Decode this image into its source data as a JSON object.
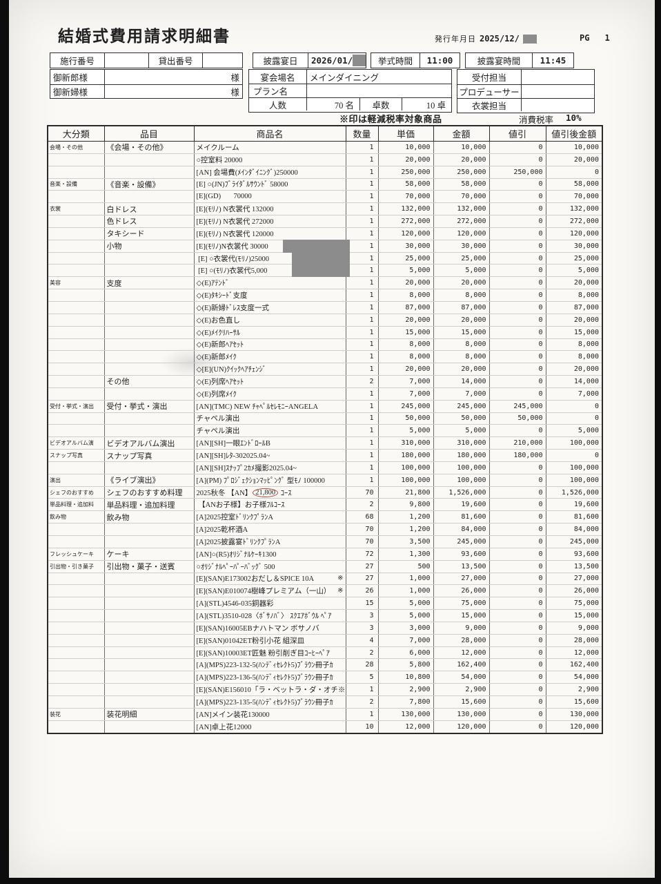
{
  "page": {
    "title": "結婚式費用請求明細書",
    "issue_date_label": "発行年月日",
    "issue_date_value": "2025/12/",
    "pg_label": "PG",
    "pg_value": "1"
  },
  "header": {
    "seko_label": "施行番号",
    "seko_value": "",
    "kashidashi_label": "貸出番号",
    "kashidashi_value": "",
    "groom_label": "御新郎様",
    "groom_value": "",
    "bride_label": "御新婦様",
    "bride_value": "",
    "sama": "様",
    "reception_date_label": "披露宴日",
    "reception_date_value": "2026/01/",
    "ceremony_time_label": "挙式時間",
    "ceremony_time_value": "11:00",
    "reception_time_label": "披露宴時間",
    "reception_time_value": "11:45",
    "venue_label": "宴会場名",
    "venue_value": "メインダイニング",
    "plan_label": "プラン名",
    "plan_value": "",
    "guests_label": "人数",
    "guests_value": "70 名",
    "tables_label": "卓数",
    "tables_value": "10 卓",
    "reception_staff_label": "受付担当",
    "reception_staff_value": "",
    "producer_label": "プロデューサー",
    "producer_value": "",
    "costume_staff_label": "衣裳担当",
    "costume_staff_value": "",
    "tax_note": "※印は軽減税率対象商品",
    "tax_rate_label": "消費税率",
    "tax_rate_value": "10%"
  },
  "table": {
    "columns": [
      "大分類",
      "品目",
      "商品名",
      "数量",
      "単価",
      "金額",
      "値引",
      "値引後金額"
    ],
    "rows": [
      {
        "c": "会場・その他",
        "i": "《会場・その他》",
        "p": "メイクルーム",
        "q": "1",
        "u": "10,000",
        "a": "10,000",
        "d": "0",
        "n": "10,000"
      },
      {
        "p": "○控室料 20000",
        "q": "1",
        "u": "20,000",
        "a": "20,000",
        "d": "0",
        "n": "20,000"
      },
      {
        "p": "[AN] 会場費(ﾒｲﾝﾀﾞｲﾆﾝｸﾞ)250000",
        "q": "1",
        "u": "250,000",
        "a": "250,000",
        "d": "250,000",
        "n": "0"
      },
      {
        "c": "音楽・設備",
        "i": "《音楽・設備》",
        "p": "[E] ○(JN)ﾌﾞﾗｲﾀﾞﾙｻｳﾝﾄﾞ 58000",
        "q": "1",
        "u": "58,000",
        "a": "58,000",
        "d": "0",
        "n": "58,000"
      },
      {
        "p": "[E](GD)       70000",
        "q": "1",
        "u": "70,000",
        "a": "70,000",
        "d": "0",
        "n": "70,000"
      },
      {
        "c": "衣裳",
        "i": "白ドレス",
        "p": "[E](ﾓﾘﾉ) N衣裳代 132000",
        "q": "1",
        "u": "132,000",
        "a": "132,000",
        "d": "0",
        "n": "132,000"
      },
      {
        "i": "色ドレス",
        "p": "[E](ﾓﾘﾉ) N衣裳代 272000",
        "q": "1",
        "u": "272,000",
        "a": "272,000",
        "d": "0",
        "n": "272,000"
      },
      {
        "i": "タキシード",
        "p": "[E](ﾓﾘﾉ) N衣裳代 120000",
        "q": "1",
        "u": "120,000",
        "a": "120,000",
        "d": "0",
        "n": "120,000"
      },
      {
        "i": "小物",
        "p": "[E](ﾓﾘﾉ)N衣裳代 30000",
        "redact": "wide",
        "q": "1",
        "u": "30,000",
        "a": "30,000",
        "d": "0",
        "n": "30,000"
      },
      {
        "p": " [E] ○衣裳代(ﾓﾘﾉ)25000",
        "redact": "narrow",
        "q": "1",
        "u": "25,000",
        "a": "25,000",
        "d": "0",
        "n": "25,000"
      },
      {
        "p": " [E] ○(ﾓﾘﾉ)衣裳代5,000",
        "redact": "narrow",
        "q": "1",
        "u": "5,000",
        "a": "5,000",
        "d": "0",
        "n": "5,000"
      },
      {
        "c": "美容",
        "i": "支度",
        "p": "◇(E)ｱﾃﾝﾄﾞ",
        "q": "1",
        "u": "20,000",
        "a": "20,000",
        "d": "0",
        "n": "20,000"
      },
      {
        "p": "◇(E)ﾀｷｼｰﾄﾞ支度",
        "q": "1",
        "u": "8,000",
        "a": "8,000",
        "d": "0",
        "n": "8,000"
      },
      {
        "p": "◇(E)新婦ﾄﾞﾚｽ支度一式",
        "q": "1",
        "u": "87,000",
        "a": "87,000",
        "d": "0",
        "n": "87,000"
      },
      {
        "p": "◇(E)お色直し",
        "q": "1",
        "u": "20,000",
        "a": "20,000",
        "d": "0",
        "n": "20,000"
      },
      {
        "p": "◇(E)ﾒｲｸﾘﾊｰｻﾙ",
        "q": "1",
        "u": "15,000",
        "a": "15,000",
        "d": "0",
        "n": "15,000"
      },
      {
        "p": "◇(E)新郎ﾍｱｾｯﾄ",
        "q": "1",
        "u": "8,000",
        "a": "8,000",
        "d": "0",
        "n": "8,000"
      },
      {
        "p": "◇(E)新郎ﾒｲｸ",
        "q": "1",
        "u": "8,000",
        "a": "8,000",
        "d": "0",
        "n": "8,000"
      },
      {
        "p": "◇[E](UN)ｸｲｯｸﾍｱﾁｪﾝｼﾞ",
        "q": "1",
        "u": "20,000",
        "a": "20,000",
        "d": "0",
        "n": "20,000"
      },
      {
        "i": "その他",
        "p": "◇(E)列席ﾍｱｾｯﾄ",
        "q": "2",
        "u": "7,000",
        "a": "14,000",
        "d": "0",
        "n": "14,000"
      },
      {
        "p": "◇(E)列席ﾒｲｸ",
        "q": "1",
        "u": "7,000",
        "a": "7,000",
        "d": "0",
        "n": "7,000"
      },
      {
        "c": "受付・挙式・演出",
        "i": "受付・挙式・演出",
        "p": "[AN](TMC) NEW ﾁｬﾍﾟﾙｾﾚﾓﾆｰANGELA",
        "q": "1",
        "u": "245,000",
        "a": "245,000",
        "d": "245,000",
        "n": "0"
      },
      {
        "p": "チャペル演出",
        "q": "1",
        "u": "50,000",
        "a": "50,000",
        "d": "50,000",
        "n": "0"
      },
      {
        "p": "チャペル演出",
        "q": "1",
        "u": "5,000",
        "a": "5,000",
        "d": "0",
        "n": "5,000"
      },
      {
        "c": "ビデオアルバム演",
        "i": "ビデオアルバム演出",
        "p": "[AN][SH]一眼ｴﾝﾄﾞﾛｰﾙB",
        "q": "1",
        "u": "310,000",
        "a": "310,000",
        "d": "210,000",
        "n": "100,000"
      },
      {
        "c": "スナップ写真",
        "i": "スナップ写真",
        "p": "[AN][SH]ﾚﾀ-302025.04~",
        "q": "1",
        "u": "180,000",
        "a": "180,000",
        "d": "180,000",
        "n": "0"
      },
      {
        "p": "[AN][SH]ｽﾅｯﾌﾟ2ｶﾒ撮影2025.04~",
        "q": "1",
        "u": "100,000",
        "a": "100,000",
        "d": "0",
        "n": "100,000"
      },
      {
        "c": "演出",
        "i": "《ライブ演出》",
        "p": "[A](PM) ﾌﾟﾛｼﾞｪｸｼｮﾝﾏｯﾋﾟﾝｸﾞ 型ﾓﾉ 100000",
        "q": "1",
        "u": "100,000",
        "a": "100,000",
        "d": "0",
        "n": "100,000"
      },
      {
        "c": "シェフのおすすめ",
        "i": "シェフのおすすめ料理",
        "p": "2025秋冬 【AN】21,800 ｺｰｽ",
        "circle": "21,800",
        "q": "70",
        "u": "21,800",
        "a": "1,526,000",
        "d": "0",
        "n": "1,526,000"
      },
      {
        "c": "単品料理・追加料",
        "i": "単品料理・追加料理",
        "p": " 【ANお子様】お子様ﾌﾙｺｰｽ",
        "q": "2",
        "u": "9,800",
        "a": "19,600",
        "d": "0",
        "n": "19,600"
      },
      {
        "c": "飲み物",
        "i": "飲み物",
        "p": "[A]2025控室ﾄﾞﾘﾝｸﾌﾟﾗﾝA",
        "q": "68",
        "u": "1,200",
        "a": "81,600",
        "d": "0",
        "n": "81,600"
      },
      {
        "p": "[A]2025乾杯酒A",
        "q": "70",
        "u": "1,200",
        "a": "84,000",
        "d": "0",
        "n": "84,000"
      },
      {
        "p": "[A]2025披露宴ﾄﾞﾘﾝｸﾌﾟﾗﾝA",
        "q": "70",
        "u": "3,500",
        "a": "245,000",
        "d": "0",
        "n": "245,000"
      },
      {
        "c": "フレッシュケーキ",
        "i": "ケーキ",
        "p": "[AN]○(R5)ｵﾘｼﾞﾅﾙｹｰｷ1300",
        "q": "72",
        "u": "1,300",
        "a": "93,600",
        "d": "0",
        "n": "93,600"
      },
      {
        "c": "引出物・引き菓子",
        "i": "引出物・菓子・送賓",
        "p": "○ｵﾘｼﾞﾅﾙﾍﾟｰﾊﾟｰﾊﾞｯｸﾞ 500",
        "q": "27",
        "u": "500",
        "a": "13,500",
        "d": "0",
        "n": "13,500"
      },
      {
        "p": "[E](SAN)E173002おだし＆SPICE 10A",
        "mark": "※",
        "q": "27",
        "u": "1,000",
        "a": "27,000",
        "d": "0",
        "n": "27,000"
      },
      {
        "p": "[E](SAN)E010074樹峰プレミアム（一山）",
        "mark": "※",
        "q": "26",
        "u": "1,000",
        "a": "26,000",
        "d": "0",
        "n": "26,000"
      },
      {
        "p": "[A](STL)4546-035銅器彩",
        "q": "15",
        "u": "5,000",
        "a": "75,000",
        "d": "0",
        "n": "75,000"
      },
      {
        "p": "[A](STL)3510-028〈ﾎﾞｻﾉﾊﾞ〉 ｽｸｴｱﾎﾞｳﾙ ﾍﾟｱ",
        "q": "3",
        "u": "5,000",
        "a": "15,000",
        "d": "0",
        "n": "15,000"
      },
      {
        "p": "[E](SAN)16005EBナハトマン ボサノバ",
        "q": "3",
        "u": "3,000",
        "a": "9,000",
        "d": "0",
        "n": "9,000"
      },
      {
        "p": "[E](SAN)01042ET粉引小花 組深皿",
        "q": "4",
        "u": "7,000",
        "a": "28,000",
        "d": "0",
        "n": "28,000"
      },
      {
        "p": "[E](SAN)10003ET匠魅 粉引削ぎ目ｺｰﾋｰﾍﾟｱ",
        "q": "2",
        "u": "6,000",
        "a": "12,000",
        "d": "0",
        "n": "12,000"
      },
      {
        "p": "[A](MPS)223-132-5(ﾊﾝﾃﾞｨｾﾚｸﾄ5)ﾌﾞﾗｳﾝ冊子ｶ",
        "q": "28",
        "u": "5,800",
        "a": "162,400",
        "d": "0",
        "n": "162,400"
      },
      {
        "p": "[A](MPS)223-136-5(ﾊﾝﾃﾞｨｾﾚｸﾄ5)ﾌﾞﾗｳﾝ冊子ｶ",
        "q": "5",
        "u": "10,800",
        "a": "54,000",
        "d": "0",
        "n": "54,000"
      },
      {
        "p": "[E](SAN)E156010「ラ・ベットラ・ダ・オチ※",
        "q": "1",
        "u": "2,900",
        "a": "2,900",
        "d": "0",
        "n": "2,900"
      },
      {
        "p": "[A](MPS)223-135-5(ﾊﾝﾃﾞｨｾﾚｸﾄ5)ﾌﾞﾗｳﾝ冊子ｶ",
        "q": "2",
        "u": "7,800",
        "a": "15,600",
        "d": "0",
        "n": "15,600"
      },
      {
        "c": "装花",
        "i": "装花明細",
        "p": "[AN]メイン装花130000",
        "q": "1",
        "u": "130,000",
        "a": "130,000",
        "d": "0",
        "n": "130,000"
      },
      {
        "p": "[AN]卓上花12000",
        "q": "10",
        "u": "12,000",
        "a": "120,000",
        "d": "0",
        "n": "120,000"
      }
    ]
  },
  "colors": {
    "paper": "#faf9f6",
    "background": "#0d0d0d",
    "line_dark": "#2f2f2f",
    "line_light": "#cfcec9",
    "redaction_gray": "#8c8c8c",
    "annotation_red": "#b0453e"
  }
}
